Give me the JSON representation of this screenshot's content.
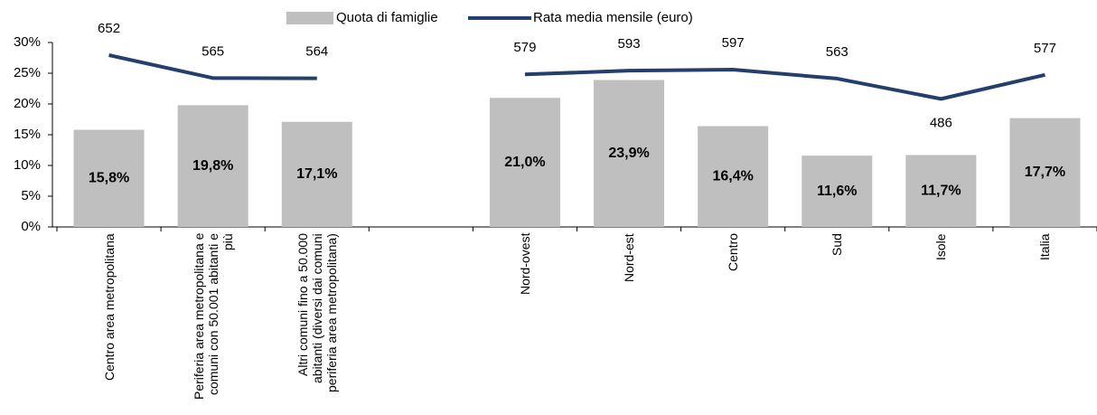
{
  "chart_data": {
    "type": "bar_line",
    "categories": [
      "Centro area metropolitana",
      "Periferia area metropolitana e comuni con 50.001 abitanti e più",
      "Altri comuni fino a 50.000 abitanti (diversi dai comuni periferia area metropolitana)",
      null,
      "Nord-ovest",
      "Nord-est",
      "Centro",
      "Sud",
      "Isole",
      "Italia"
    ],
    "series": [
      {
        "name": "Quota di famiglie",
        "type": "bar",
        "color": "#bfbfbf",
        "values": [
          15.8,
          19.8,
          17.1,
          null,
          21.0,
          23.9,
          16.4,
          11.6,
          11.7,
          17.7
        ],
        "value_labels": [
          "15,8%",
          "19,8%",
          "17,1%",
          null,
          "21,0%",
          "23,9%",
          "16,4%",
          "11,6%",
          "11,7%",
          "17,7%"
        ]
      },
      {
        "name": "Rata media mensile (euro)",
        "type": "line",
        "color": "#243f6b",
        "axis": "y2",
        "values": [
          652,
          565,
          564,
          null,
          579,
          593,
          597,
          563,
          486,
          577
        ]
      }
    ],
    "ylim": [
      0,
      30
    ],
    "yticks": [
      {
        "value": 0,
        "label": "0%"
      },
      {
        "value": 5,
        "label": "5%"
      },
      {
        "value": 10,
        "label": "10%"
      },
      {
        "value": 15,
        "label": "15%"
      },
      {
        "value": 20,
        "label": "20%"
      },
      {
        "value": 25,
        "label": "25%"
      },
      {
        "value": 30,
        "label": "30%"
      }
    ],
    "y2lim": [
      0,
      700
    ],
    "legend": "top"
  }
}
